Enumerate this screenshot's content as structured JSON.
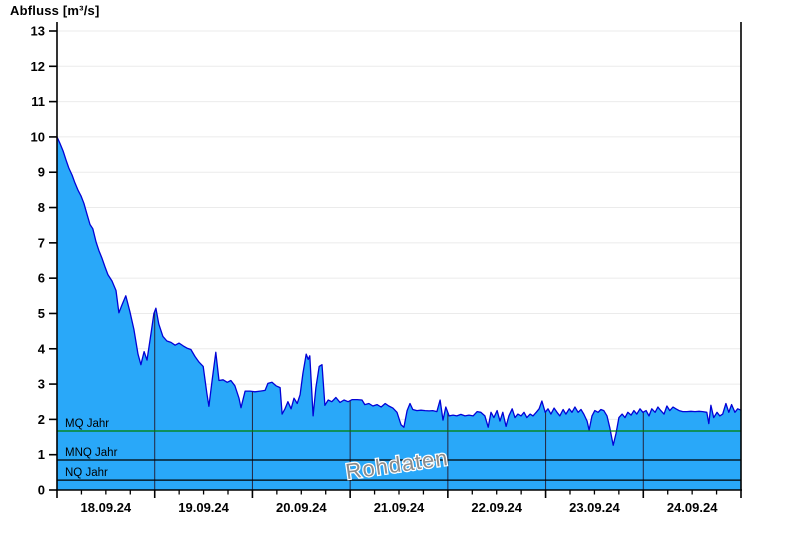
{
  "chart_data": {
    "type": "area",
    "title": "Abfluss [m³/s]",
    "watermark": "Rohdaten",
    "x_day_labels": [
      "18.09.24",
      "19.09.24",
      "20.09.24",
      "21.09.24",
      "22.09.24",
      "23.09.24",
      "24.09.24"
    ],
    "x_range_hours": [
      0,
      168
    ],
    "x_minor_ticks_per_day": 4,
    "ylim": [
      0,
      13
    ],
    "yticks": [
      0,
      1,
      2,
      3,
      4,
      5,
      6,
      7,
      8,
      9,
      10,
      11,
      12,
      13
    ],
    "grid": "horizontal-light, vertical day lines only inside filled area",
    "legend": "none",
    "reference_lines": [
      {
        "label": "MQ Jahr",
        "value": 1.67,
        "color": "#008000"
      },
      {
        "label": "MNQ Jahr",
        "value": 0.85,
        "color": "#000000"
      },
      {
        "label": "NQ Jahr",
        "value": 0.28,
        "color": "#000000"
      }
    ],
    "colors": {
      "area_fill": "#29A8F9",
      "line": "#0202D6",
      "gridline": "#EBEBEB",
      "day_line": "#24243E",
      "axis": "#000000",
      "watermark": "#8C8C8C",
      "text": "#000000"
    },
    "series": [
      {
        "name": "Abfluss",
        "unit": "m³/s",
        "points": [
          [
            0,
            10.0
          ],
          [
            0.7,
            9.82
          ],
          [
            1.5,
            9.6
          ],
          [
            2.2,
            9.35
          ],
          [
            2.9,
            9.12
          ],
          [
            3.7,
            8.92
          ],
          [
            4.4,
            8.7
          ],
          [
            5.2,
            8.48
          ],
          [
            5.9,
            8.33
          ],
          [
            6.6,
            8.12
          ],
          [
            7.4,
            7.8
          ],
          [
            8.1,
            7.52
          ],
          [
            8.8,
            7.4
          ],
          [
            9.6,
            7.02
          ],
          [
            10.3,
            6.78
          ],
          [
            11,
            6.58
          ],
          [
            11.8,
            6.32
          ],
          [
            12.5,
            6.1
          ],
          [
            13.5,
            5.92
          ],
          [
            14.5,
            5.65
          ],
          [
            15.2,
            5.02
          ],
          [
            16,
            5.25
          ],
          [
            16.9,
            5.5
          ],
          [
            17.9,
            5.05
          ],
          [
            18.9,
            4.55
          ],
          [
            19.9,
            3.85
          ],
          [
            20.6,
            3.55
          ],
          [
            21.4,
            3.92
          ],
          [
            22.1,
            3.68
          ],
          [
            23.1,
            4.45
          ],
          [
            23.8,
            5.0
          ],
          [
            24.3,
            5.15
          ],
          [
            25,
            4.7
          ],
          [
            26,
            4.35
          ],
          [
            27,
            4.22
          ],
          [
            28,
            4.18
          ],
          [
            29,
            4.1
          ],
          [
            30,
            4.16
          ],
          [
            31,
            4.08
          ],
          [
            31.9,
            4.02
          ],
          [
            32.9,
            3.98
          ],
          [
            33.9,
            3.78
          ],
          [
            34.9,
            3.62
          ],
          [
            35.9,
            3.5
          ],
          [
            36.8,
            2.75
          ],
          [
            37.3,
            2.37
          ],
          [
            38.1,
            3.1
          ],
          [
            39,
            3.9
          ],
          [
            39.8,
            3.1
          ],
          [
            40.8,
            3.12
          ],
          [
            41.8,
            3.05
          ],
          [
            42.7,
            3.1
          ],
          [
            43.7,
            2.95
          ],
          [
            44.7,
            2.6
          ],
          [
            45.2,
            2.33
          ],
          [
            46.2,
            2.8
          ],
          [
            47.4,
            2.8
          ],
          [
            48.6,
            2.78
          ],
          [
            49.9,
            2.8
          ],
          [
            51.1,
            2.82
          ],
          [
            51.8,
            3.02
          ],
          [
            52.8,
            3.05
          ],
          [
            53.8,
            2.95
          ],
          [
            54.8,
            2.9
          ],
          [
            55.3,
            2.15
          ],
          [
            56,
            2.3
          ],
          [
            56.7,
            2.5
          ],
          [
            57.5,
            2.3
          ],
          [
            58.2,
            2.6
          ],
          [
            59,
            2.45
          ],
          [
            59.7,
            2.7
          ],
          [
            60.4,
            3.3
          ],
          [
            61.2,
            3.85
          ],
          [
            61.7,
            3.7
          ],
          [
            62.1,
            3.8
          ],
          [
            62.9,
            2.1
          ],
          [
            63.6,
            2.9
          ],
          [
            64.4,
            3.5
          ],
          [
            65.1,
            3.55
          ],
          [
            65.8,
            2.4
          ],
          [
            66.6,
            2.55
          ],
          [
            67.5,
            2.5
          ],
          [
            68.5,
            2.62
          ],
          [
            69.5,
            2.48
          ],
          [
            70.5,
            2.55
          ],
          [
            71.5,
            2.5
          ],
          [
            72.5,
            2.56
          ],
          [
            73.7,
            2.56
          ],
          [
            74.9,
            2.55
          ],
          [
            75.6,
            2.42
          ],
          [
            76.6,
            2.45
          ],
          [
            77.6,
            2.38
          ],
          [
            78.6,
            2.42
          ],
          [
            79.6,
            2.35
          ],
          [
            80.6,
            2.45
          ],
          [
            81.5,
            2.38
          ],
          [
            82.5,
            2.32
          ],
          [
            83.5,
            2.2
          ],
          [
            84.5,
            1.85
          ],
          [
            85.2,
            1.78
          ],
          [
            86,
            2.25
          ],
          [
            86.7,
            2.45
          ],
          [
            87.4,
            2.28
          ],
          [
            88.4,
            2.25
          ],
          [
            89.4,
            2.26
          ],
          [
            90.4,
            2.25
          ],
          [
            91.4,
            2.24
          ],
          [
            92.3,
            2.25
          ],
          [
            93.3,
            2.22
          ],
          [
            94.1,
            2.55
          ],
          [
            94.8,
            1.98
          ],
          [
            95.5,
            2.35
          ],
          [
            96.3,
            2.1
          ],
          [
            97.3,
            2.12
          ],
          [
            98.2,
            2.1
          ],
          [
            99.2,
            2.14
          ],
          [
            100.2,
            2.1
          ],
          [
            101.2,
            2.12
          ],
          [
            102.2,
            2.1
          ],
          [
            103.2,
            2.22
          ],
          [
            104.1,
            2.2
          ],
          [
            105.1,
            2.1
          ],
          [
            105.9,
            1.78
          ],
          [
            106.6,
            2.2
          ],
          [
            107.3,
            2.05
          ],
          [
            108.1,
            2.25
          ],
          [
            108.8,
            1.95
          ],
          [
            109.5,
            2.2
          ],
          [
            110.3,
            1.8
          ],
          [
            111,
            2.1
          ],
          [
            111.8,
            2.3
          ],
          [
            112.5,
            2.05
          ],
          [
            113.2,
            2.15
          ],
          [
            114,
            2.1
          ],
          [
            114.7,
            2.2
          ],
          [
            115.4,
            2.05
          ],
          [
            116.2,
            2.15
          ],
          [
            116.9,
            2.1
          ],
          [
            117.7,
            2.2
          ],
          [
            118.4,
            2.3
          ],
          [
            119.1,
            2.52
          ],
          [
            119.9,
            2.2
          ],
          [
            120.6,
            2.3
          ],
          [
            121.3,
            2.15
          ],
          [
            122.1,
            2.32
          ],
          [
            122.8,
            2.2
          ],
          [
            123.5,
            2.1
          ],
          [
            124.3,
            2.28
          ],
          [
            125,
            2.15
          ],
          [
            125.8,
            2.3
          ],
          [
            126.5,
            2.2
          ],
          [
            127.2,
            2.35
          ],
          [
            128,
            2.2
          ],
          [
            128.7,
            2.28
          ],
          [
            129.4,
            2.15
          ],
          [
            130.2,
            1.95
          ],
          [
            130.7,
            1.7
          ],
          [
            131.4,
            2.1
          ],
          [
            132.1,
            2.25
          ],
          [
            132.9,
            2.2
          ],
          [
            133.6,
            2.28
          ],
          [
            134.3,
            2.25
          ],
          [
            135.1,
            2.1
          ],
          [
            135.8,
            1.75
          ],
          [
            136.6,
            1.27
          ],
          [
            137.3,
            1.6
          ],
          [
            138,
            2.05
          ],
          [
            138.8,
            2.15
          ],
          [
            139.5,
            2.05
          ],
          [
            140.2,
            2.2
          ],
          [
            141,
            2.12
          ],
          [
            141.7,
            2.25
          ],
          [
            142.4,
            2.15
          ],
          [
            143.2,
            2.3
          ],
          [
            143.9,
            2.2
          ],
          [
            144.7,
            2.25
          ],
          [
            145.4,
            2.1
          ],
          [
            146.1,
            2.3
          ],
          [
            146.9,
            2.2
          ],
          [
            147.6,
            2.35
          ],
          [
            148.3,
            2.25
          ],
          [
            149.1,
            2.15
          ],
          [
            149.8,
            2.38
          ],
          [
            150.5,
            2.25
          ],
          [
            151.3,
            2.35
          ],
          [
            152,
            2.3
          ],
          [
            152.8,
            2.25
          ],
          [
            153.7,
            2.22
          ],
          [
            154.7,
            2.22
          ],
          [
            155.7,
            2.23
          ],
          [
            156.7,
            2.22
          ],
          [
            157.7,
            2.23
          ],
          [
            158.6,
            2.22
          ],
          [
            159.6,
            2.2
          ],
          [
            160.1,
            1.88
          ],
          [
            160.6,
            2.4
          ],
          [
            161.3,
            2.05
          ],
          [
            162.1,
            2.2
          ],
          [
            162.8,
            2.1
          ],
          [
            163.5,
            2.15
          ],
          [
            164.3,
            2.45
          ],
          [
            165,
            2.2
          ],
          [
            165.7,
            2.42
          ],
          [
            166.5,
            2.2
          ],
          [
            167.2,
            2.3
          ],
          [
            168,
            2.26
          ]
        ]
      }
    ]
  }
}
